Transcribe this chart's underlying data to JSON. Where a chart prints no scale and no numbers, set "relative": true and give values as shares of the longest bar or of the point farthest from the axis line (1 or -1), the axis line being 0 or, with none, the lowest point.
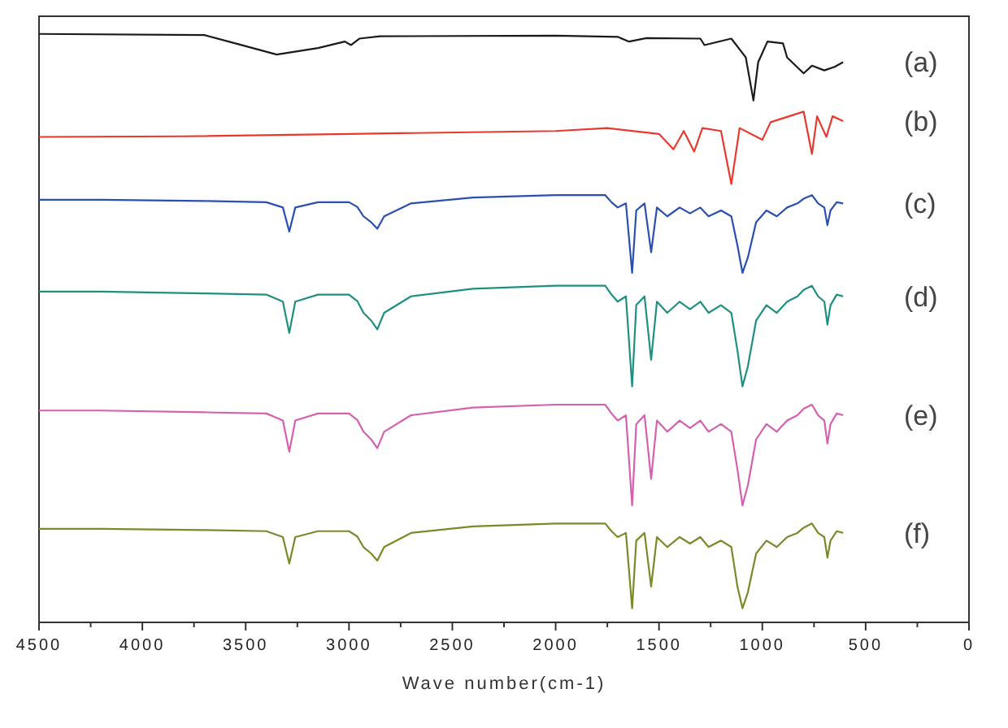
{
  "chart_data": {
    "type": "line",
    "relative": true,
    "xlabel": "Wave number(cm-1)",
    "xlim": [
      4500,
      0
    ],
    "xticks": [
      4500,
      {
        "value": 4250,
        "label": null
      },
      4000,
      {
        "value": 3750,
        "label": null
      },
      3500,
      {
        "value": 3250,
        "label": null
      },
      3000,
      {
        "value": 2750,
        "label": null
      },
      2500,
      {
        "value": 2250,
        "label": null
      },
      2000,
      {
        "value": 1750,
        "label": null
      },
      1500,
      {
        "value": 1250,
        "label": null
      },
      1000,
      {
        "value": 750,
        "label": null
      },
      500,
      {
        "value": 250,
        "label": null
      },
      0
    ],
    "tick_labels": "x",
    "grid": false,
    "legend": false,
    "series": [
      {
        "name": "(a)",
        "color": "#1a1a1a",
        "x": [
          4500,
          3700,
          3550,
          3350,
          3150,
          3020,
          2990,
          2950,
          2850,
          2000,
          1700,
          1645,
          1560,
          1300,
          1280,
          1150,
          1080,
          1043,
          1020,
          975,
          900,
          880,
          800,
          760,
          700,
          650,
          609
        ],
        "values": [
          1.0,
          0.998,
          0.984,
          0.965,
          0.976,
          0.987,
          0.981,
          0.992,
          0.996,
          0.997,
          0.995,
          0.987,
          0.993,
          0.992,
          0.981,
          0.992,
          0.96,
          0.887,
          0.952,
          0.987,
          0.984,
          0.96,
          0.933,
          0.946,
          0.938,
          0.944,
          0.952
        ]
      },
      {
        "name": "(b)",
        "color": "#e8392f",
        "x": [
          4500,
          3800,
          3000,
          2000,
          1750,
          1500,
          1430,
          1380,
          1330,
          1290,
          1200,
          1150,
          1110,
          1000,
          960,
          800,
          760,
          735,
          690,
          660,
          609
        ],
        "values": [
          0.825,
          0.826,
          0.83,
          0.835,
          0.84,
          0.83,
          0.804,
          0.835,
          0.8,
          0.84,
          0.835,
          0.745,
          0.84,
          0.82,
          0.85,
          0.868,
          0.796,
          0.86,
          0.825,
          0.86,
          0.852
        ]
      },
      {
        "name": "(c)",
        "color": "#2a4fb0",
        "x": [
          4500,
          4200,
          3700,
          3400,
          3320,
          3289,
          3260,
          3150,
          3000,
          2960,
          2930,
          2893,
          2863,
          2830,
          2700,
          2400,
          2000,
          1760,
          1730,
          1700,
          1660,
          1630,
          1610,
          1570,
          1538,
          1510,
          1460,
          1400,
          1350,
          1300,
          1260,
          1200,
          1150,
          1120,
          1096,
          1070,
          1030,
          980,
          930,
          880,
          830,
          800,
          760,
          730,
          700,
          685,
          670,
          640,
          609
        ],
        "values": [
          0.718,
          0.718,
          0.716,
          0.714,
          0.705,
          0.664,
          0.705,
          0.714,
          0.714,
          0.706,
          0.69,
          0.68,
          0.669,
          0.69,
          0.712,
          0.722,
          0.726,
          0.726,
          0.714,
          0.705,
          0.712,
          0.594,
          0.7,
          0.712,
          0.629,
          0.705,
          0.69,
          0.705,
          0.695,
          0.705,
          0.69,
          0.7,
          0.69,
          0.64,
          0.594,
          0.62,
          0.68,
          0.7,
          0.69,
          0.705,
          0.712,
          0.72,
          0.726,
          0.712,
          0.705,
          0.675,
          0.7,
          0.714,
          0.712
        ]
      },
      {
        "name": "(d)",
        "color": "#1f9080",
        "x": [
          4500,
          4200,
          3700,
          3400,
          3320,
          3289,
          3260,
          3150,
          3000,
          2960,
          2930,
          2893,
          2863,
          2830,
          2700,
          2400,
          2000,
          1760,
          1730,
          1700,
          1660,
          1630,
          1610,
          1570,
          1538,
          1510,
          1460,
          1400,
          1350,
          1300,
          1260,
          1200,
          1150,
          1120,
          1096,
          1070,
          1030,
          980,
          930,
          880,
          830,
          800,
          760,
          730,
          700,
          685,
          670,
          640,
          609
        ],
        "values": [
          0.562,
          0.562,
          0.559,
          0.557,
          0.545,
          0.492,
          0.545,
          0.557,
          0.557,
          0.546,
          0.526,
          0.513,
          0.498,
          0.526,
          0.554,
          0.567,
          0.572,
          0.572,
          0.557,
          0.545,
          0.554,
          0.401,
          0.539,
          0.554,
          0.446,
          0.545,
          0.526,
          0.545,
          0.532,
          0.545,
          0.526,
          0.539,
          0.526,
          0.461,
          0.401,
          0.435,
          0.513,
          0.539,
          0.526,
          0.545,
          0.554,
          0.565,
          0.572,
          0.554,
          0.545,
          0.506,
          0.539,
          0.557,
          0.554
        ]
      },
      {
        "name": "(e)",
        "color": "#d660b0",
        "x": [
          4500,
          4200,
          3700,
          3400,
          3320,
          3289,
          3260,
          3150,
          3000,
          2960,
          2930,
          2893,
          2863,
          2830,
          2700,
          2400,
          2000,
          1760,
          1730,
          1700,
          1660,
          1630,
          1610,
          1570,
          1538,
          1510,
          1460,
          1400,
          1350,
          1300,
          1260,
          1200,
          1150,
          1120,
          1096,
          1070,
          1030,
          980,
          930,
          880,
          830,
          800,
          760,
          730,
          700,
          685,
          670,
          640,
          609
        ],
        "values": [
          0.36,
          0.36,
          0.357,
          0.355,
          0.343,
          0.29,
          0.343,
          0.355,
          0.355,
          0.344,
          0.324,
          0.311,
          0.296,
          0.324,
          0.352,
          0.365,
          0.37,
          0.37,
          0.355,
          0.343,
          0.352,
          0.199,
          0.337,
          0.352,
          0.244,
          0.343,
          0.324,
          0.343,
          0.33,
          0.343,
          0.324,
          0.337,
          0.324,
          0.259,
          0.199,
          0.233,
          0.311,
          0.337,
          0.324,
          0.343,
          0.352,
          0.363,
          0.37,
          0.352,
          0.343,
          0.304,
          0.337,
          0.355,
          0.352
        ]
      },
      {
        "name": "(f)",
        "color": "#7a8a2a",
        "x": [
          4500,
          4200,
          3700,
          3400,
          3320,
          3289,
          3260,
          3150,
          3000,
          2960,
          2930,
          2893,
          2863,
          2830,
          2700,
          2400,
          2000,
          1760,
          1730,
          1700,
          1660,
          1630,
          1610,
          1570,
          1538,
          1510,
          1460,
          1400,
          1350,
          1300,
          1260,
          1200,
          1150,
          1120,
          1096,
          1070,
          1030,
          980,
          930,
          880,
          830,
          800,
          760,
          730,
          700,
          685,
          670,
          640,
          609
        ],
        "values": [
          0.159,
          0.159,
          0.157,
          0.155,
          0.145,
          0.1,
          0.145,
          0.155,
          0.155,
          0.146,
          0.128,
          0.117,
          0.105,
          0.128,
          0.152,
          0.163,
          0.168,
          0.168,
          0.155,
          0.145,
          0.152,
          0.024,
          0.139,
          0.152,
          0.061,
          0.145,
          0.128,
          0.145,
          0.134,
          0.145,
          0.128,
          0.139,
          0.128,
          0.06,
          0.024,
          0.051,
          0.117,
          0.139,
          0.128,
          0.145,
          0.152,
          0.161,
          0.168,
          0.152,
          0.145,
          0.11,
          0.139,
          0.155,
          0.152
        ]
      }
    ]
  }
}
